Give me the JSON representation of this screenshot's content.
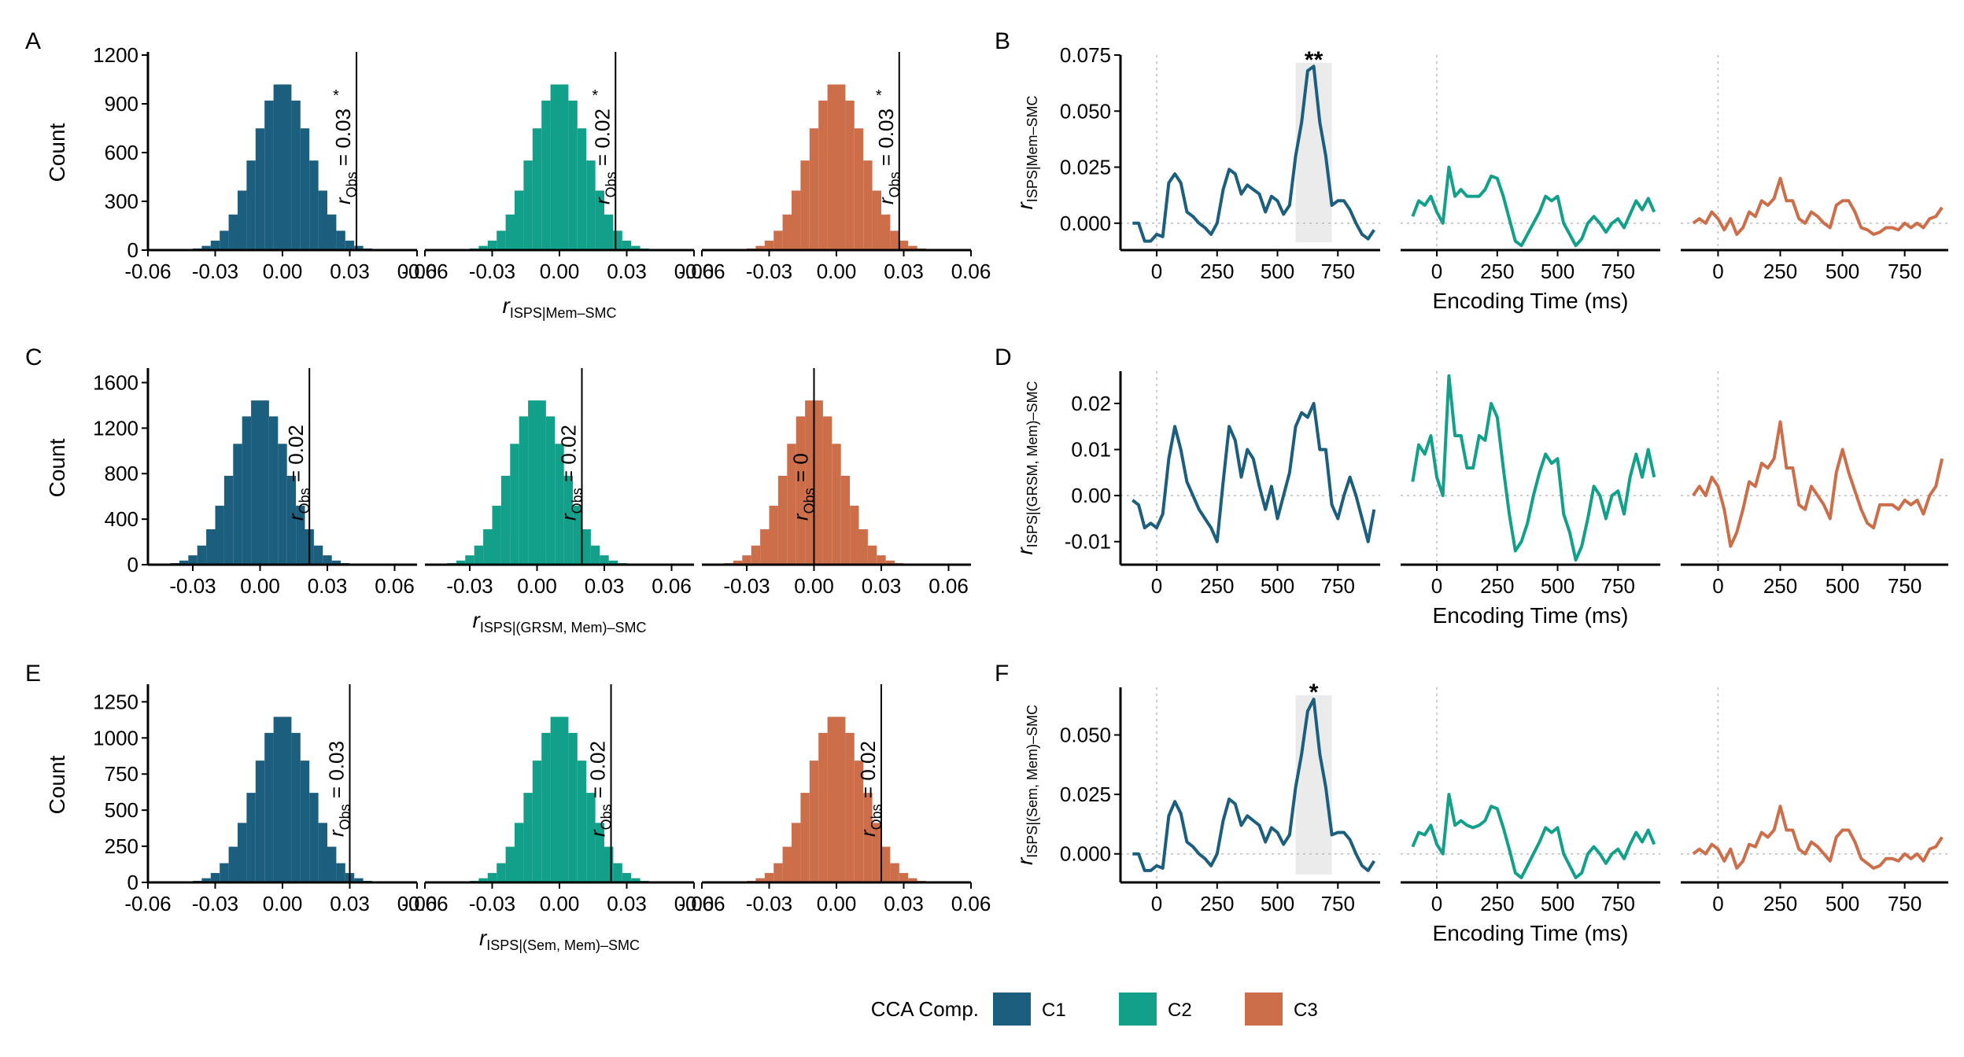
{
  "colors": {
    "C1": "#1B5E7E",
    "C2": "#12A08A",
    "C3": "#CD6E4B",
    "shade": "#EBEBEB"
  },
  "legend": {
    "title": "CCA Comp.",
    "items": [
      {
        "key": "C1",
        "label": "C1"
      },
      {
        "key": "C2",
        "label": "C2"
      },
      {
        "key": "C3",
        "label": "C3"
      }
    ]
  },
  "chart_data": [
    {
      "id": "A",
      "type": "bar",
      "letter": "A",
      "ylabel": "Count",
      "xlabel_main": "r",
      "xlabel_sub": "ISPS|Mem–SMC",
      "ylim": [
        0,
        1200
      ],
      "yticks": [
        0,
        300,
        600,
        900,
        1200
      ],
      "xlim": [
        -0.06,
        0.06
      ],
      "xticks": [
        -0.06,
        -0.03,
        0.0,
        0.03,
        0.06
      ],
      "xtick_labels": [
        "-0.06",
        "-0.03",
        "0.00",
        "0.03",
        "0.06"
      ],
      "subpanels": [
        {
          "comp": "C1",
          "obs": 0.033,
          "obs_text": " = 0.03",
          "obs_star": "*"
        },
        {
          "comp": "C2",
          "obs": 0.025,
          "obs_text": " = 0.02",
          "obs_star": "*"
        },
        {
          "comp": "C3",
          "obs": 0.028,
          "obs_text": " = 0.03",
          "obs_star": "*"
        }
      ]
    },
    {
      "id": "B",
      "type": "line",
      "letter": "B",
      "ylabel_main": "r",
      "ylabel_sub": "ISPS|Mem–SMC",
      "xlabel": "Encoding Time (ms)",
      "ylim": [
        -0.012,
        0.075
      ],
      "yticks": [
        0.0,
        0.025,
        0.05,
        0.075
      ],
      "ytick_labels": [
        "0.000",
        "0.025",
        "0.050",
        "0.075"
      ],
      "xlim": [
        -150,
        925
      ],
      "xticks": [
        0,
        250,
        500,
        750
      ],
      "xtick_labels": [
        "0",
        "250",
        "500",
        "750"
      ],
      "highlight": {
        "comp": "C1",
        "x0": 575,
        "x1": 725,
        "star": "**"
      },
      "series": [
        {
          "comp": "C1",
          "x": [
            -100,
            -75,
            -50,
            -25,
            0,
            25,
            50,
            75,
            100,
            125,
            150,
            175,
            200,
            225,
            250,
            275,
            300,
            325,
            350,
            375,
            400,
            425,
            450,
            475,
            500,
            525,
            550,
            575,
            600,
            625,
            650,
            675,
            700,
            725,
            750,
            775,
            800,
            825,
            850,
            875,
            900
          ],
          "values": [
            0.0,
            0.0,
            -0.008,
            -0.008,
            -0.005,
            -0.006,
            0.018,
            0.022,
            0.018,
            0.005,
            0.003,
            0.0,
            -0.002,
            -0.005,
            0.0,
            0.015,
            0.024,
            0.022,
            0.013,
            0.017,
            0.015,
            0.013,
            0.005,
            0.012,
            0.01,
            0.004,
            0.008,
            0.03,
            0.045,
            0.068,
            0.07,
            0.045,
            0.03,
            0.008,
            0.01,
            0.01,
            0.006,
            0.0,
            -0.005,
            -0.007,
            -0.003
          ]
        },
        {
          "comp": "C2",
          "x": [
            -100,
            -75,
            -50,
            -25,
            0,
            25,
            50,
            75,
            100,
            125,
            150,
            175,
            200,
            225,
            250,
            275,
            300,
            325,
            350,
            375,
            400,
            425,
            450,
            475,
            500,
            525,
            550,
            575,
            600,
            625,
            650,
            675,
            700,
            725,
            750,
            775,
            800,
            825,
            850,
            875,
            900
          ],
          "values": [
            0.003,
            0.01,
            0.008,
            0.012,
            0.005,
            0.0,
            0.025,
            0.012,
            0.015,
            0.012,
            0.012,
            0.012,
            0.015,
            0.021,
            0.02,
            0.012,
            0.002,
            -0.008,
            -0.01,
            -0.005,
            0.0,
            0.005,
            0.012,
            0.01,
            0.012,
            0.0,
            -0.005,
            -0.01,
            -0.007,
            0.0,
            0.003,
            0.0,
            -0.004,
            0.0,
            0.002,
            -0.002,
            0.004,
            0.01,
            0.006,
            0.011,
            0.005
          ]
        },
        {
          "comp": "C3",
          "x": [
            -100,
            -75,
            -50,
            -25,
            0,
            25,
            50,
            75,
            100,
            125,
            150,
            175,
            200,
            225,
            250,
            275,
            300,
            325,
            350,
            375,
            400,
            425,
            450,
            475,
            500,
            525,
            550,
            575,
            600,
            625,
            650,
            675,
            700,
            725,
            750,
            775,
            800,
            825,
            850,
            875,
            900
          ],
          "values": [
            0.0,
            0.002,
            0.0,
            0.005,
            0.002,
            -0.003,
            0.002,
            -0.005,
            -0.002,
            0.005,
            0.003,
            0.01,
            0.008,
            0.011,
            0.02,
            0.01,
            0.01,
            0.002,
            0.0,
            0.005,
            0.003,
            0.0,
            -0.002,
            0.008,
            0.01,
            0.01,
            0.005,
            -0.002,
            -0.003,
            -0.005,
            -0.004,
            -0.002,
            -0.002,
            -0.003,
            0.0,
            -0.002,
            0.0,
            -0.002,
            0.002,
            0.003,
            0.007
          ]
        }
      ]
    },
    {
      "id": "C",
      "type": "bar",
      "letter": "C",
      "ylabel": "Count",
      "xlabel_main": "r",
      "xlabel_sub": "ISPS|(GRSM, Mem)–SMC",
      "ylim": [
        0,
        1700
      ],
      "yticks": [
        0,
        400,
        800,
        1200,
        1600
      ],
      "xlim": [
        -0.05,
        0.07
      ],
      "xticks": [
        -0.03,
        0.0,
        0.03,
        0.06
      ],
      "xtick_labels": [
        "-0.03",
        "0.00",
        "0.03",
        "0.06"
      ],
      "subpanels": [
        {
          "comp": "C1",
          "obs": 0.022,
          "obs_text": " = 0.02",
          "obs_star": ""
        },
        {
          "comp": "C2",
          "obs": 0.02,
          "obs_text": " = 0.02",
          "obs_star": ""
        },
        {
          "comp": "C3",
          "obs": 0.0,
          "obs_text": " = 0",
          "obs_star": ""
        }
      ]
    },
    {
      "id": "D",
      "type": "line",
      "letter": "D",
      "ylabel_main": "r",
      "ylabel_sub": "ISPS|(GRSM, Mem)–SMC",
      "xlabel": "Encoding Time (ms)",
      "ylim": [
        -0.015,
        0.027
      ],
      "yticks": [
        -0.01,
        0.0,
        0.01,
        0.02
      ],
      "ytick_labels": [
        "-0.01",
        "0.00",
        "0.01",
        "0.02"
      ],
      "xlim": [
        -150,
        925
      ],
      "xticks": [
        0,
        250,
        500,
        750
      ],
      "xtick_labels": [
        "0",
        "250",
        "500",
        "750"
      ],
      "highlight": null,
      "series": [
        {
          "comp": "C1",
          "x": [
            -100,
            -75,
            -50,
            -25,
            0,
            25,
            50,
            75,
            100,
            125,
            150,
            175,
            200,
            225,
            250,
            275,
            300,
            325,
            350,
            375,
            400,
            425,
            450,
            475,
            500,
            525,
            550,
            575,
            600,
            625,
            650,
            675,
            700,
            725,
            750,
            775,
            800,
            825,
            850,
            875,
            900
          ],
          "values": [
            -0.001,
            -0.002,
            -0.007,
            -0.006,
            -0.007,
            -0.004,
            0.008,
            0.015,
            0.01,
            0.003,
            0.0,
            -0.003,
            -0.005,
            -0.007,
            -0.01,
            0.003,
            0.015,
            0.012,
            0.004,
            0.01,
            0.008,
            0.002,
            -0.003,
            0.002,
            -0.005,
            0.0,
            0.005,
            0.015,
            0.018,
            0.017,
            0.02,
            0.01,
            0.01,
            -0.002,
            -0.005,
            0.0,
            0.004,
            0.0,
            -0.005,
            -0.01,
            -0.003
          ]
        },
        {
          "comp": "C2",
          "x": [
            -100,
            -75,
            -50,
            -25,
            0,
            25,
            50,
            75,
            100,
            125,
            150,
            175,
            200,
            225,
            250,
            275,
            300,
            325,
            350,
            375,
            400,
            425,
            450,
            475,
            500,
            525,
            550,
            575,
            600,
            625,
            650,
            675,
            700,
            725,
            750,
            775,
            800,
            825,
            850,
            875,
            900
          ],
          "values": [
            0.003,
            0.011,
            0.009,
            0.013,
            0.004,
            0.0,
            0.026,
            0.013,
            0.013,
            0.006,
            0.006,
            0.013,
            0.012,
            0.02,
            0.017,
            0.006,
            -0.004,
            -0.012,
            -0.01,
            -0.006,
            0.0,
            0.005,
            0.009,
            0.007,
            0.008,
            -0.004,
            -0.008,
            -0.014,
            -0.011,
            -0.005,
            0.002,
            0.0,
            -0.005,
            0.0,
            0.001,
            -0.004,
            0.004,
            0.009,
            0.004,
            0.01,
            0.004
          ]
        },
        {
          "comp": "C3",
          "x": [
            -100,
            -75,
            -50,
            -25,
            0,
            25,
            50,
            75,
            100,
            125,
            150,
            175,
            200,
            225,
            250,
            275,
            300,
            325,
            350,
            375,
            400,
            425,
            450,
            475,
            500,
            525,
            550,
            575,
            600,
            625,
            650,
            675,
            700,
            725,
            750,
            775,
            800,
            825,
            850,
            875,
            900
          ],
          "values": [
            0.0,
            0.002,
            0.0,
            0.004,
            0.002,
            -0.003,
            -0.011,
            -0.008,
            -0.003,
            0.003,
            0.002,
            0.007,
            0.006,
            0.008,
            0.016,
            0.006,
            0.006,
            -0.002,
            -0.003,
            0.002,
            0.0,
            -0.002,
            -0.005,
            0.005,
            0.01,
            0.005,
            0.001,
            -0.003,
            -0.006,
            -0.007,
            -0.002,
            -0.002,
            -0.002,
            -0.003,
            -0.001,
            -0.002,
            -0.001,
            -0.004,
            0.0,
            0.002,
            0.008
          ]
        }
      ]
    },
    {
      "id": "E",
      "type": "bar",
      "letter": "E",
      "ylabel": "Count",
      "xlabel_main": "r",
      "xlabel_sub": "ISPS|(Sem, Mem)–SMC",
      "ylim": [
        0,
        1350
      ],
      "yticks": [
        0,
        250,
        500,
        750,
        1000,
        1250
      ],
      "xlim": [
        -0.06,
        0.06
      ],
      "xticks": [
        -0.06,
        -0.03,
        0.0,
        0.03,
        0.06
      ],
      "xtick_labels": [
        "-0.06",
        "-0.03",
        "0.00",
        "0.03",
        "0.06"
      ],
      "subpanels": [
        {
          "comp": "C1",
          "obs": 0.03,
          "obs_text": " = 0.03",
          "obs_star": ""
        },
        {
          "comp": "C2",
          "obs": 0.023,
          "obs_text": " = 0.02",
          "obs_star": ""
        },
        {
          "comp": "C3",
          "obs": 0.02,
          "obs_text": " = 0.02",
          "obs_star": ""
        }
      ]
    },
    {
      "id": "F",
      "type": "line",
      "letter": "F",
      "ylabel_main": "r",
      "ylabel_sub": "ISPS|(Sem, Mem)–SMC",
      "xlabel": "Encoding Time (ms)",
      "ylim": [
        -0.012,
        0.07
      ],
      "yticks": [
        0.0,
        0.025,
        0.05
      ],
      "ytick_labels": [
        "0.000",
        "0.025",
        "0.050"
      ],
      "xlim": [
        -150,
        925
      ],
      "xticks": [
        0,
        250,
        500,
        750
      ],
      "xtick_labels": [
        "0",
        "250",
        "500",
        "750"
      ],
      "highlight": {
        "comp": "C1",
        "x0": 575,
        "x1": 725,
        "star": "*"
      },
      "series": [
        {
          "comp": "C1",
          "x": [
            -100,
            -75,
            -50,
            -25,
            0,
            25,
            50,
            75,
            100,
            125,
            150,
            175,
            200,
            225,
            250,
            275,
            300,
            325,
            350,
            375,
            400,
            425,
            450,
            475,
            500,
            525,
            550,
            575,
            600,
            625,
            650,
            675,
            700,
            725,
            750,
            775,
            800,
            825,
            850,
            875,
            900
          ],
          "values": [
            0.0,
            0.0,
            -0.007,
            -0.007,
            -0.005,
            -0.006,
            0.016,
            0.022,
            0.017,
            0.005,
            0.003,
            0.0,
            -0.002,
            -0.005,
            0.0,
            0.014,
            0.023,
            0.021,
            0.012,
            0.016,
            0.014,
            0.012,
            0.005,
            0.011,
            0.009,
            0.004,
            0.008,
            0.028,
            0.042,
            0.06,
            0.065,
            0.042,
            0.028,
            0.008,
            0.009,
            0.009,
            0.006,
            0.0,
            -0.005,
            -0.007,
            -0.003
          ]
        },
        {
          "comp": "C2",
          "x": [
            -100,
            -75,
            -50,
            -25,
            0,
            25,
            50,
            75,
            100,
            125,
            150,
            175,
            200,
            225,
            250,
            275,
            300,
            325,
            350,
            375,
            400,
            425,
            450,
            475,
            500,
            525,
            550,
            575,
            600,
            625,
            650,
            675,
            700,
            725,
            750,
            775,
            800,
            825,
            850,
            875,
            900
          ],
          "values": [
            0.003,
            0.009,
            0.008,
            0.012,
            0.004,
            0.0,
            0.025,
            0.012,
            0.014,
            0.012,
            0.011,
            0.012,
            0.014,
            0.02,
            0.019,
            0.011,
            0.002,
            -0.008,
            -0.01,
            -0.005,
            0.0,
            0.005,
            0.011,
            0.009,
            0.011,
            0.0,
            -0.005,
            -0.01,
            -0.008,
            0.0,
            0.003,
            0.0,
            -0.004,
            0.0,
            0.002,
            -0.002,
            0.004,
            0.009,
            0.005,
            0.01,
            0.004
          ]
        },
        {
          "comp": "C3",
          "x": [
            -100,
            -75,
            -50,
            -25,
            0,
            25,
            50,
            75,
            100,
            125,
            150,
            175,
            200,
            225,
            250,
            275,
            300,
            325,
            350,
            375,
            400,
            425,
            450,
            475,
            500,
            525,
            550,
            575,
            600,
            625,
            650,
            675,
            700,
            725,
            750,
            775,
            800,
            825,
            850,
            875,
            900
          ],
          "values": [
            0.0,
            0.002,
            0.0,
            0.004,
            0.002,
            -0.003,
            0.002,
            -0.006,
            -0.003,
            0.004,
            0.003,
            0.009,
            0.007,
            0.01,
            0.02,
            0.01,
            0.01,
            0.002,
            0.0,
            0.005,
            0.003,
            0.0,
            -0.003,
            0.007,
            0.01,
            0.01,
            0.005,
            -0.002,
            -0.004,
            -0.006,
            -0.005,
            -0.002,
            -0.002,
            -0.003,
            0.0,
            -0.002,
            0.0,
            -0.003,
            0.002,
            0.003,
            0.007
          ]
        }
      ]
    }
  ]
}
